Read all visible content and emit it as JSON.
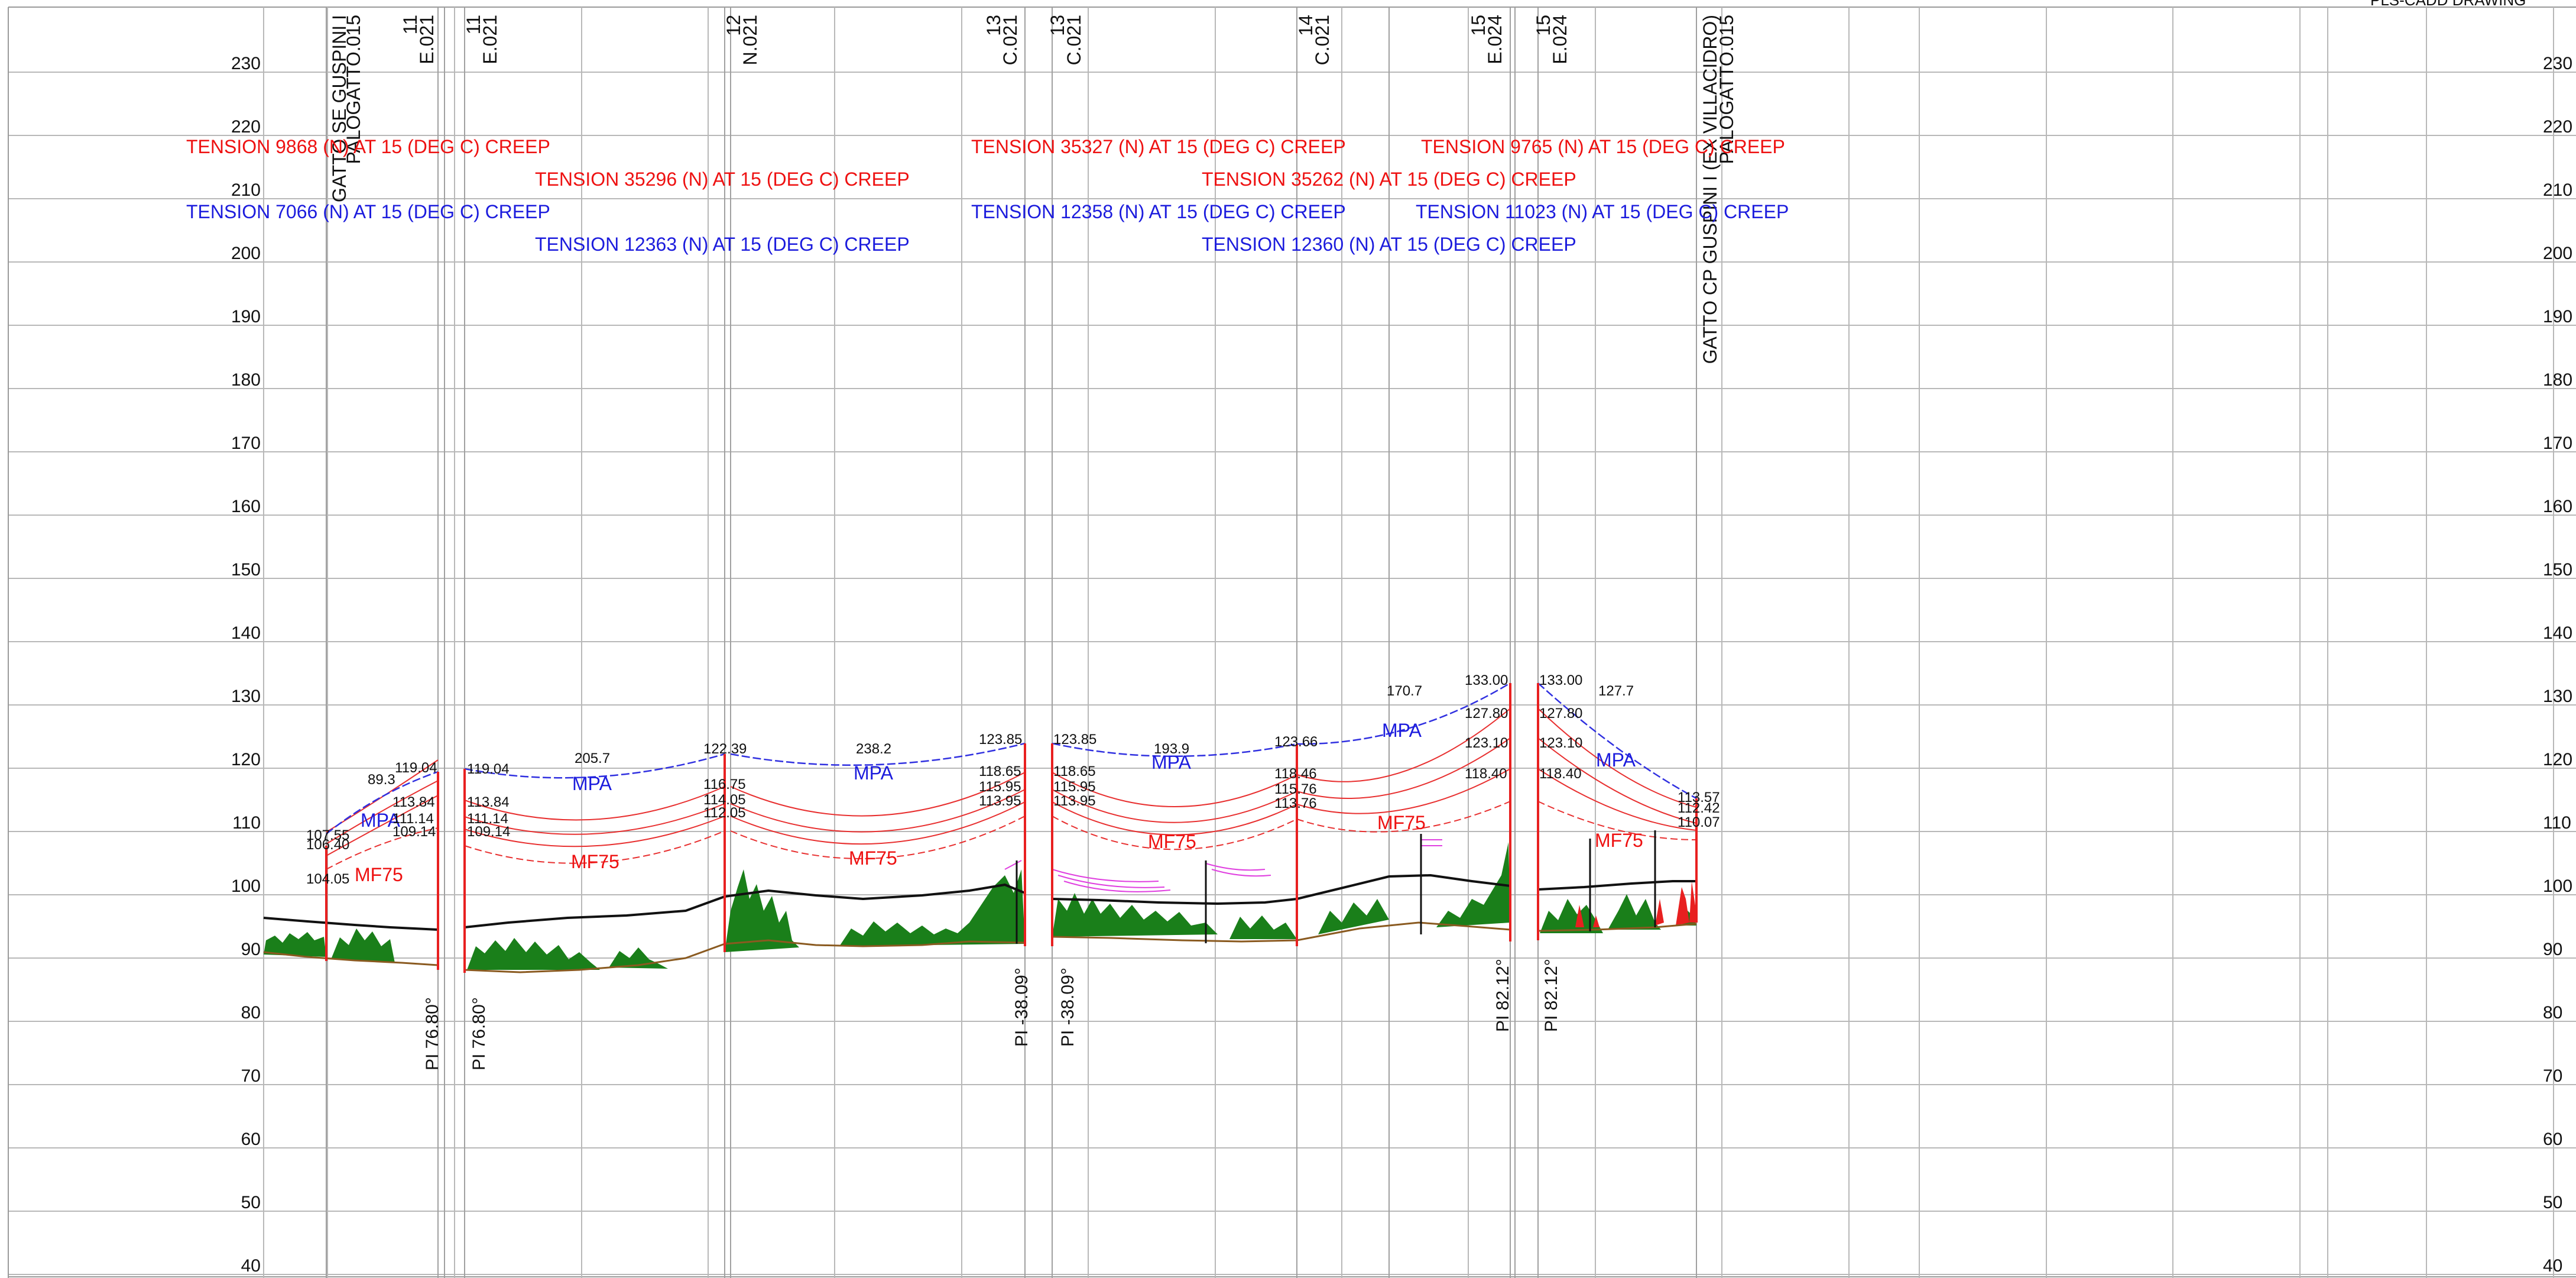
{
  "header": {
    "drawing_title": "PLS-CADD DRAWING"
  },
  "colors": {
    "tension_red": "#ee1111",
    "tension_blue": "#1c1cdd",
    "mpa_curve": "#3030e0",
    "mf75_curve": "#e83030",
    "structure": "#e82020",
    "ground": "#111111",
    "vegetation": "#1a7f1a",
    "grid": "#b8b8b8",
    "magenta": "#e040e0"
  },
  "elevation_axis": {
    "min": 40,
    "max": 230,
    "step": 10,
    "labels": [
      "230",
      "220",
      "210",
      "200",
      "190",
      "180",
      "170",
      "160",
      "150",
      "140",
      "130",
      "120",
      "110",
      "100",
      "90",
      "80",
      "70",
      "60",
      "50",
      "40"
    ]
  },
  "structures": [
    {
      "id": "s1",
      "lines": [
        "GATTO SE GUSPINI I",
        "PALOGATTO.015"
      ],
      "base": 0
    },
    {
      "id": "s2",
      "lines": [
        "11",
        "E.021"
      ],
      "base": 0
    },
    {
      "id": "s3",
      "lines": [
        "11",
        "E.021"
      ],
      "base": 0
    },
    {
      "id": "s4",
      "lines": [
        "12",
        "N.021"
      ],
      "base": 0
    },
    {
      "id": "s5",
      "lines": [
        "13",
        "C.021"
      ],
      "base": 0
    },
    {
      "id": "s6",
      "lines": [
        "13",
        "C.021"
      ],
      "base": 0
    },
    {
      "id": "s7",
      "lines": [
        "14",
        "C.021"
      ],
      "base": 0
    },
    {
      "id": "s8",
      "lines": [
        "15",
        "E.024"
      ],
      "base": 0
    },
    {
      "id": "s9",
      "lines": [
        "15",
        "E.024"
      ],
      "base": 0
    },
    {
      "id": "s10",
      "lines": [
        "GATTO CP GUSPINI I (EX VILLACIDRO)",
        "PALOGATTO.015"
      ],
      "base": 0
    }
  ],
  "tensions": [
    {
      "text": "TENSION 9868 (N) AT 15 (DEG C) CREEP",
      "color": "red"
    },
    {
      "text": "TENSION 7066 (N) AT 15 (DEG C) CREEP",
      "color": "blue"
    },
    {
      "text": "TENSION 35296 (N) AT 15 (DEG C) CREEP",
      "color": "red"
    },
    {
      "text": "TENSION 12363 (N) AT 15 (DEG C) CREEP",
      "color": "blue"
    },
    {
      "text": "TENSION 35327 (N) AT 15 (DEG C) CREEP",
      "color": "red"
    },
    {
      "text": "TENSION 12358 (N) AT 15 (DEG C) CREEP",
      "color": "blue"
    },
    {
      "text": "TENSION 35262 (N) AT 15 (DEG C) CREEP",
      "color": "red"
    },
    {
      "text": "TENSION 12360 (N) AT 15 (DEG C) CREEP",
      "color": "blue"
    },
    {
      "text": "TENSION 9765 (N) AT 15 (DEG C) CREEP",
      "color": "red"
    },
    {
      "text": "TENSION 11023 (N) AT 15 (DEG C) CREEP",
      "color": "blue"
    }
  ],
  "deflections": [
    {
      "text": "PI 76.80°"
    },
    {
      "text": "PI 76.80°"
    },
    {
      "text": "PI -38.09°"
    },
    {
      "text": "PI -38.09°"
    },
    {
      "text": "PI 82.12°"
    },
    {
      "text": "PI 82.12°"
    }
  ],
  "curve_labels": {
    "mpa": "MPA",
    "mf75": "MF75"
  },
  "elevation_values": [
    "119.04",
    "89.3",
    "113.84",
    "111.14",
    "109.14",
    "107.55",
    "106.40",
    "104.05",
    "119.04",
    "113.84",
    "111.14",
    "109.14",
    "205.7",
    "122.39",
    "116.75",
    "114.05",
    "112.05",
    "238.2",
    "123.85",
    "118.65",
    "115.95",
    "113.95",
    "123.85",
    "118.65",
    "115.95",
    "113.95",
    "193.9",
    "123.66",
    "118.46",
    "115.76",
    "113.76",
    "170.7",
    "133.00",
    "127.80",
    "123.10",
    "118.40",
    "133.00",
    "127.7",
    "127.80",
    "123.10",
    "118.40",
    "113.57",
    "112.42",
    "110.07"
  ]
}
